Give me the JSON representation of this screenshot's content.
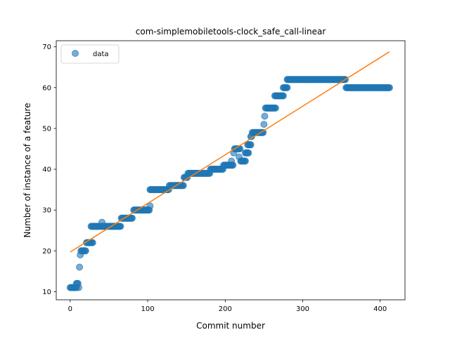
{
  "chart_data": {
    "type": "scatter",
    "title": "com-simplemobiletools-clock_safe_call-linear",
    "xlabel": "Commit number",
    "ylabel": "Number of instance of a feature",
    "xlim": [
      -18,
      432
    ],
    "ylim": [
      8,
      71.5
    ],
    "xticks": [
      0,
      100,
      200,
      300,
      400
    ],
    "yticks": [
      10,
      20,
      30,
      40,
      50,
      60,
      70
    ],
    "grid": false,
    "legend_position": "top-left",
    "colors": {
      "data": "#1f77b4",
      "fit": "#ff7f0e"
    },
    "series": [
      {
        "name": "data",
        "marker": "circle",
        "segments": [
          [
            0,
            8,
            11
          ],
          [
            8,
            10,
            12
          ],
          [
            11,
            11,
            11
          ],
          [
            12,
            12,
            16
          ],
          [
            13,
            13,
            19
          ],
          [
            14,
            20,
            20
          ],
          [
            21,
            29,
            22
          ],
          [
            27,
            65,
            26
          ],
          [
            41,
            41,
            27
          ],
          [
            66,
            80,
            28
          ],
          [
            82,
            102,
            30
          ],
          [
            103,
            103,
            31
          ],
          [
            103,
            127,
            35
          ],
          [
            128,
            146,
            36
          ],
          [
            147,
            151,
            38
          ],
          [
            152,
            180,
            39
          ],
          [
            181,
            197,
            40
          ],
          [
            198,
            210,
            41
          ],
          [
            208,
            208,
            42
          ],
          [
            211,
            211,
            44
          ],
          [
            212,
            219,
            45
          ],
          [
            218,
            218,
            43
          ],
          [
            220,
            226,
            42
          ],
          [
            226,
            230,
            44
          ],
          [
            229,
            233,
            46
          ],
          [
            233,
            234,
            48
          ],
          [
            235,
            249,
            49
          ],
          [
            250,
            250,
            51
          ],
          [
            251,
            251,
            53
          ],
          [
            252,
            265,
            55
          ],
          [
            264,
            275,
            58
          ],
          [
            275,
            280,
            60
          ],
          [
            280,
            355,
            62
          ],
          [
            356,
            412,
            60
          ]
        ]
      },
      {
        "name": "",
        "type": "line",
        "x": [
          0,
          412
        ],
        "y": [
          19.7,
          68.8
        ]
      }
    ]
  }
}
